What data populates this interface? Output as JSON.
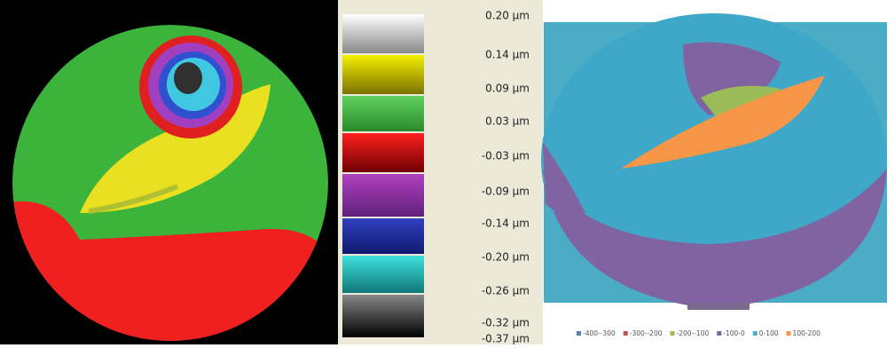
{
  "colorbar": {
    "labels": [
      "0.20 µm",
      "0.14 µm",
      "0.09 µm",
      "0.03 µm",
      "-0.03 µm",
      "-0.09 µm",
      "-0.14 µm",
      "-0.20 µm",
      "-0.26 µm",
      "-0.32 µm",
      "-0.37 µm"
    ]
  },
  "legend": {
    "items": [
      {
        "name": "-400--300",
        "color": "#4f81bd"
      },
      {
        "name": "-300--200",
        "color": "#c0504d"
      },
      {
        "name": "-200--100",
        "color": "#9bbb59"
      },
      {
        "name": "-100-0",
        "color": "#8064a2"
      },
      {
        "name": "0-100",
        "color": "#4bacc6"
      },
      {
        "name": "100-200",
        "color": "#f79646"
      }
    ]
  }
}
